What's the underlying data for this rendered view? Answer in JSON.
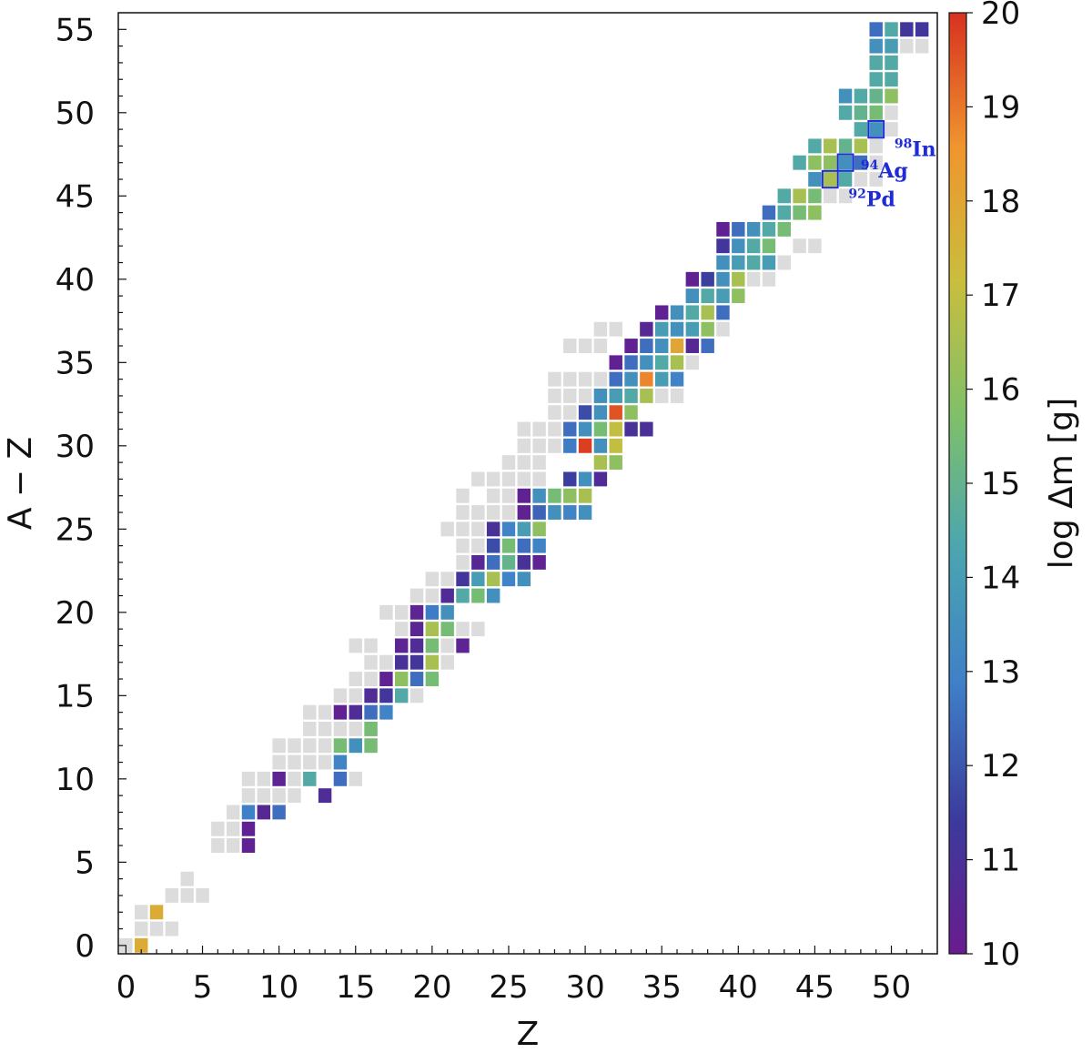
{
  "chart_data": {
    "type": "heatmap",
    "title": "",
    "xlabel": "Z",
    "ylabel": "A − Z",
    "xlim": [
      -0.5,
      53
    ],
    "ylim": [
      -0.5,
      56
    ],
    "xticks": [
      0,
      5,
      10,
      15,
      20,
      25,
      30,
      35,
      40,
      45,
      50
    ],
    "yticks": [
      0,
      5,
      10,
      15,
      20,
      25,
      30,
      35,
      40,
      45,
      50,
      55
    ],
    "colorbar": {
      "label": "log Δm [g]",
      "range": [
        10,
        20
      ],
      "ticks": [
        10,
        11,
        12,
        13,
        14,
        15,
        16,
        17,
        18,
        19,
        20
      ],
      "colormap_stops": [
        "#6a1b8f",
        "#3b3b9c",
        "#3f7fc8",
        "#4aa5b0",
        "#7fc06a",
        "#c9be3d",
        "#f0952e",
        "#d7311f"
      ]
    },
    "missing_color": "#dcdcdc",
    "cells_colored": [
      [
        1,
        0,
        17.8
      ],
      [
        2,
        2,
        17.8
      ],
      [
        8,
        6,
        10.3
      ],
      [
        8,
        7,
        10.3
      ],
      [
        9,
        8,
        10.6
      ],
      [
        10,
        8,
        12.5
      ],
      [
        8,
        8,
        12.9
      ],
      [
        10,
        10,
        10.4
      ],
      [
        12,
        10,
        14.5
      ],
      [
        13,
        9,
        10.8
      ],
      [
        14,
        11,
        13.0
      ],
      [
        14,
        10,
        12.5
      ],
      [
        14,
        12,
        15.5
      ],
      [
        15,
        12,
        13.5
      ],
      [
        16,
        12,
        15.5
      ],
      [
        14,
        14,
        10.3
      ],
      [
        15,
        14,
        10.8
      ],
      [
        16,
        14,
        12.5
      ],
      [
        17,
        14,
        13.0
      ],
      [
        16,
        13,
        15.5
      ],
      [
        16,
        15,
        10.8
      ],
      [
        17,
        15,
        11.2
      ],
      [
        18,
        15,
        14.5
      ],
      [
        17,
        16,
        10.3
      ],
      [
        18,
        16,
        16.0
      ],
      [
        19,
        16,
        12.5
      ],
      [
        20,
        16,
        15.5
      ],
      [
        18,
        17,
        11.0
      ],
      [
        19,
        17,
        11.2
      ],
      [
        20,
        17,
        16.5
      ],
      [
        18,
        18,
        10.4
      ],
      [
        19,
        18,
        10.8
      ],
      [
        20,
        18,
        15.5
      ],
      [
        22,
        18,
        10.4
      ],
      [
        19,
        19,
        10.5
      ],
      [
        20,
        19,
        16.5
      ],
      [
        21,
        19,
        15.5
      ],
      [
        19,
        20,
        10.4
      ],
      [
        20,
        20,
        12.8
      ],
      [
        21,
        20,
        13.5
      ],
      [
        21,
        21,
        10.8
      ],
      [
        22,
        21,
        14.5
      ],
      [
        23,
        21,
        15.5
      ],
      [
        24,
        21,
        13.5
      ],
      [
        22,
        22,
        11.2
      ],
      [
        23,
        22,
        14.0
      ],
      [
        24,
        22,
        16.5
      ],
      [
        25,
        22,
        13.0
      ],
      [
        26,
        22,
        13.5
      ],
      [
        23,
        23,
        10.6
      ],
      [
        24,
        23,
        12.5
      ],
      [
        25,
        23,
        15.0
      ],
      [
        26,
        23,
        11.0
      ],
      [
        27,
        23,
        10.3
      ],
      [
        24,
        24,
        11.8
      ],
      [
        25,
        24,
        15.5
      ],
      [
        26,
        24,
        12.5
      ],
      [
        27,
        24,
        13.0
      ],
      [
        24,
        25,
        11.0
      ],
      [
        25,
        25,
        13.0
      ],
      [
        26,
        25,
        14.0
      ],
      [
        27,
        25,
        16.0
      ],
      [
        26,
        26,
        10.3
      ],
      [
        27,
        26,
        12.3
      ],
      [
        28,
        26,
        13.5
      ],
      [
        29,
        26,
        13.0
      ],
      [
        30,
        26,
        13.5
      ],
      [
        26,
        27,
        10.3
      ],
      [
        27,
        27,
        13.5
      ],
      [
        28,
        27,
        15.5
      ],
      [
        29,
        27,
        16.0
      ],
      [
        30,
        27,
        16.5
      ],
      [
        29,
        28,
        11.5
      ],
      [
        30,
        28,
        13.5
      ],
      [
        31,
        28,
        10.8
      ],
      [
        31,
        29,
        16.5
      ],
      [
        32,
        29,
        16.0
      ],
      [
        29,
        30,
        12.8
      ],
      [
        30,
        30,
        19.8
      ],
      [
        31,
        30,
        13.5
      ],
      [
        32,
        30,
        17.0
      ],
      [
        29,
        31,
        12.5
      ],
      [
        30,
        31,
        13.5
      ],
      [
        31,
        31,
        15.5
      ],
      [
        32,
        31,
        17.0
      ],
      [
        33,
        31,
        11.0
      ],
      [
        34,
        31,
        11.0
      ],
      [
        30,
        32,
        11.8
      ],
      [
        31,
        32,
        13.5
      ],
      [
        32,
        32,
        19.5
      ],
      [
        33,
        32,
        16.0
      ],
      [
        31,
        33,
        13.5
      ],
      [
        32,
        33,
        14.0
      ],
      [
        33,
        33,
        14.5
      ],
      [
        34,
        33,
        16.5
      ],
      [
        32,
        34,
        12.5
      ],
      [
        33,
        34,
        13.5
      ],
      [
        34,
        34,
        18.8
      ],
      [
        35,
        34,
        14.0
      ],
      [
        36,
        34,
        13.0
      ],
      [
        32,
        35,
        10.3
      ],
      [
        33,
        35,
        12.5
      ],
      [
        34,
        35,
        13.5
      ],
      [
        35,
        35,
        14.5
      ],
      [
        36,
        35,
        16.5
      ],
      [
        33,
        36,
        10.3
      ],
      [
        34,
        36,
        12.5
      ],
      [
        35,
        36,
        13.5
      ],
      [
        36,
        36,
        18.0
      ],
      [
        37,
        36,
        10.6
      ],
      [
        38,
        36,
        12.5
      ],
      [
        34,
        37,
        10.6
      ],
      [
        35,
        37,
        14.0
      ],
      [
        36,
        37,
        13.5
      ],
      [
        37,
        37,
        14.0
      ],
      [
        38,
        37,
        16.0
      ],
      [
        35,
        38,
        10.3
      ],
      [
        36,
        38,
        13.5
      ],
      [
        37,
        38,
        14.5
      ],
      [
        38,
        38,
        16.5
      ],
      [
        39,
        38,
        12.5
      ],
      [
        37,
        39,
        13.5
      ],
      [
        38,
        39,
        14.5
      ],
      [
        39,
        39,
        14.0
      ],
      [
        40,
        39,
        16.0
      ],
      [
        37,
        40,
        10.3
      ],
      [
        38,
        40,
        11.5
      ],
      [
        39,
        40,
        13.5
      ],
      [
        40,
        40,
        16.5
      ],
      [
        39,
        41,
        13.5
      ],
      [
        40,
        41,
        14.0
      ],
      [
        41,
        41,
        14.5
      ],
      [
        42,
        41,
        14.0
      ],
      [
        39,
        42,
        11.2
      ],
      [
        40,
        42,
        13.5
      ],
      [
        41,
        42,
        14.5
      ],
      [
        42,
        42,
        15.5
      ],
      [
        39,
        43,
        10.3
      ],
      [
        40,
        43,
        12.5
      ],
      [
        41,
        43,
        13.5
      ],
      [
        42,
        43,
        14.5
      ],
      [
        43,
        43,
        15.5
      ],
      [
        42,
        44,
        12.5
      ],
      [
        43,
        44,
        14.5
      ],
      [
        44,
        44,
        15.5
      ],
      [
        45,
        44,
        16.0
      ],
      [
        43,
        45,
        14.5
      ],
      [
        44,
        45,
        16.5
      ],
      [
        45,
        45,
        15.5
      ],
      [
        45,
        46,
        13.5
      ],
      [
        46,
        46,
        16.5
      ],
      [
        47,
        46,
        14.5
      ],
      [
        44,
        47,
        14.5
      ],
      [
        45,
        47,
        16.0
      ],
      [
        46,
        47,
        16.0
      ],
      [
        47,
        47,
        13.5
      ],
      [
        48,
        47,
        12.5
      ],
      [
        45,
        48,
        14.5
      ],
      [
        46,
        48,
        16.5
      ],
      [
        47,
        48,
        15.0
      ],
      [
        48,
        48,
        16.5
      ],
      [
        48,
        49,
        14.5
      ],
      [
        49,
        49,
        13.5
      ],
      [
        47,
        50,
        14.5
      ],
      [
        48,
        50,
        15.0
      ],
      [
        49,
        50,
        15.5
      ],
      [
        47,
        51,
        13.5
      ],
      [
        48,
        51,
        14.5
      ],
      [
        49,
        51,
        15.0
      ],
      [
        50,
        51,
        16.0
      ],
      [
        49,
        52,
        14.5
      ],
      [
        50,
        52,
        14.5
      ],
      [
        49,
        53,
        14.5
      ],
      [
        50,
        53,
        14.5
      ],
      [
        49,
        54,
        13.5
      ],
      [
        50,
        54,
        14.0
      ],
      [
        49,
        55,
        12.5
      ],
      [
        50,
        55,
        14.5
      ],
      [
        51,
        55,
        11.2
      ],
      [
        52,
        55,
        11.2
      ]
    ],
    "cells_missing": [
      [
        0,
        0
      ],
      [
        1,
        1
      ],
      [
        2,
        1
      ],
      [
        3,
        1
      ],
      [
        1,
        2
      ],
      [
        3,
        3
      ],
      [
        4,
        3
      ],
      [
        5,
        3
      ],
      [
        4,
        4
      ],
      [
        6,
        6
      ],
      [
        7,
        6
      ],
      [
        6,
        7
      ],
      [
        7,
        7
      ],
      [
        7,
        8
      ],
      [
        8,
        9
      ],
      [
        9,
        9
      ],
      [
        10,
        9
      ],
      [
        11,
        9
      ],
      [
        8,
        10
      ],
      [
        9,
        10
      ],
      [
        11,
        10
      ],
      [
        10,
        11
      ],
      [
        11,
        11
      ],
      [
        12,
        11
      ],
      [
        13,
        11
      ],
      [
        10,
        12
      ],
      [
        11,
        12
      ],
      [
        12,
        12
      ],
      [
        13,
        12
      ],
      [
        12,
        13
      ],
      [
        13,
        13
      ],
      [
        14,
        13
      ],
      [
        12,
        14
      ],
      [
        13,
        14
      ],
      [
        15,
        13
      ],
      [
        16,
        13
      ],
      [
        15,
        10
      ],
      [
        14,
        15
      ],
      [
        15,
        15
      ],
      [
        15,
        16
      ],
      [
        16,
        16
      ],
      [
        16,
        17
      ],
      [
        17,
        17
      ],
      [
        15,
        18
      ],
      [
        16,
        18
      ],
      [
        17,
        17
      ],
      [
        18,
        17
      ],
      [
        19,
        15
      ],
      [
        20,
        17
      ],
      [
        21,
        17
      ],
      [
        21,
        18
      ],
      [
        22,
        19
      ],
      [
        23,
        19
      ],
      [
        17,
        20
      ],
      [
        18,
        20
      ],
      [
        18,
        19
      ],
      [
        19,
        21
      ],
      [
        20,
        21
      ],
      [
        20,
        22
      ],
      [
        21,
        22
      ],
      [
        22,
        23
      ],
      [
        22,
        24
      ],
      [
        23,
        24
      ],
      [
        21,
        25
      ],
      [
        22,
        25
      ],
      [
        23,
        25
      ],
      [
        24,
        25
      ],
      [
        22,
        26
      ],
      [
        23,
        26
      ],
      [
        24,
        26
      ],
      [
        25,
        26
      ],
      [
        22,
        27
      ],
      [
        24,
        27
      ],
      [
        25,
        27
      ],
      [
        23,
        28
      ],
      [
        24,
        28
      ],
      [
        25,
        28
      ],
      [
        26,
        28
      ],
      [
        27,
        28
      ],
      [
        25,
        29
      ],
      [
        26,
        29
      ],
      [
        27,
        29
      ],
      [
        26,
        30
      ],
      [
        27,
        30
      ],
      [
        28,
        30
      ],
      [
        26,
        31
      ],
      [
        27,
        31
      ],
      [
        28,
        31
      ],
      [
        28,
        32
      ],
      [
        29,
        32
      ],
      [
        28,
        33
      ],
      [
        29,
        33
      ],
      [
        30,
        33
      ],
      [
        31,
        33
      ],
      [
        35,
        33
      ],
      [
        36,
        33
      ],
      [
        28,
        34
      ],
      [
        29,
        34
      ],
      [
        30,
        34
      ],
      [
        31,
        34
      ],
      [
        37,
        35
      ],
      [
        29,
        36
      ],
      [
        30,
        36
      ],
      [
        31,
        36
      ],
      [
        31,
        37
      ],
      [
        32,
        37
      ],
      [
        37,
        39
      ],
      [
        39,
        37
      ],
      [
        41,
        40
      ],
      [
        42,
        40
      ],
      [
        41,
        41
      ],
      [
        42,
        41
      ],
      [
        43,
        41
      ],
      [
        44,
        42
      ],
      [
        45,
        42
      ],
      [
        44,
        44
      ],
      [
        45,
        44
      ],
      [
        46,
        45
      ],
      [
        47,
        45
      ],
      [
        48,
        46
      ],
      [
        49,
        46
      ],
      [
        49,
        47
      ],
      [
        49,
        48
      ],
      [
        50,
        49
      ],
      [
        50,
        50
      ],
      [
        50,
        53
      ],
      [
        51,
        54
      ],
      [
        52,
        54
      ]
    ],
    "highlighted": [
      {
        "z": 49,
        "n": 49,
        "label_mass": "98",
        "label_symbol": "In"
      },
      {
        "z": 47,
        "n": 47,
        "label_mass": "94",
        "label_symbol": "Ag"
      },
      {
        "z": 46,
        "n": 46,
        "label_mass": "92",
        "label_symbol": "Pd"
      }
    ]
  }
}
